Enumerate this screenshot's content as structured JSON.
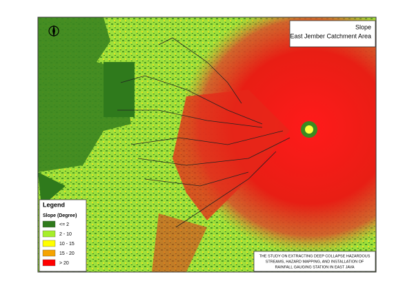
{
  "title": {
    "line1": "Slope",
    "line2": "East Jember Catchment Area"
  },
  "legend": {
    "heading": "Legend",
    "subheading": "Slope (Degree)",
    "items": [
      {
        "label": "<= 2",
        "color": "#2f7a1c"
      },
      {
        "label": "2 - 10",
        "color": "#a6ee2a"
      },
      {
        "label": "10 - 15",
        "color": "#ffff00"
      },
      {
        "label": "15 - 20",
        "color": "#f5a300"
      },
      {
        "label": "> 20",
        "color": "#ff0000"
      }
    ]
  },
  "note": {
    "lines": [
      "THE STUDY ON EXTRACTING DEEP COLLAPSE HAZARDOUS",
      "STREAMS, HAZARD MAPPING, AND INSTALLATION OF",
      "RAINFALL GAUGING STATION IN EAST JAVA"
    ]
  }
}
